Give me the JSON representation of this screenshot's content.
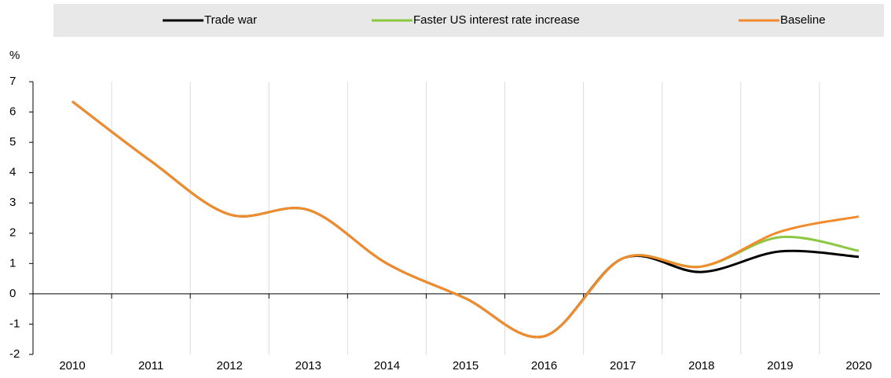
{
  "chart_data": {
    "type": "line",
    "y_label": "%",
    "categories": [
      "2010",
      "2011",
      "2012",
      "2013",
      "2014",
      "2015",
      "2016",
      "2017",
      "2018",
      "2019",
      "2020"
    ],
    "series": [
      {
        "name": "Trade war",
        "color": "#000000",
        "values": [
          6.35,
          4.38,
          2.62,
          2.77,
          1.0,
          -0.15,
          -1.4,
          1.17,
          0.72,
          1.4,
          1.22
        ]
      },
      {
        "name": "Faster US interest rate increase",
        "color": "#8cc841",
        "values": [
          6.35,
          4.38,
          2.62,
          2.77,
          1.0,
          -0.15,
          -1.4,
          1.17,
          0.9,
          1.87,
          1.42
        ]
      },
      {
        "name": "Baseline",
        "color": "#f28a2e",
        "values": [
          6.35,
          4.38,
          2.62,
          2.77,
          1.0,
          -0.15,
          -1.4,
          1.17,
          0.9,
          2.05,
          2.55
        ]
      }
    ],
    "ylim": [
      -2,
      7
    ],
    "yticks": [
      -2,
      -1,
      0,
      1,
      2,
      3,
      4,
      5,
      6,
      7
    ],
    "grid": true,
    "legend": "top"
  }
}
